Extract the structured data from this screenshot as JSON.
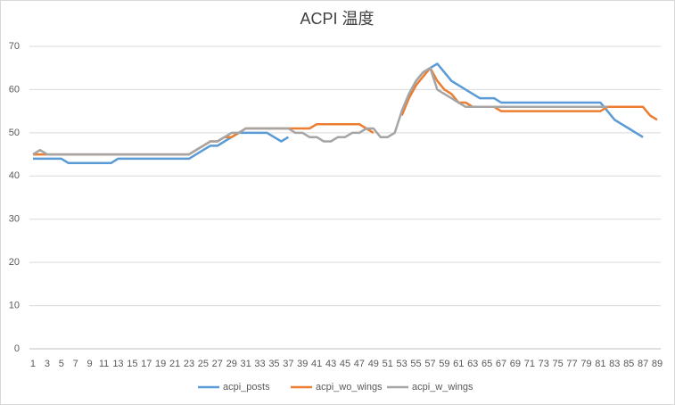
{
  "chart_data": {
    "type": "line",
    "title": "ACPI 温度",
    "x": [
      1,
      2,
      3,
      4,
      5,
      6,
      7,
      8,
      9,
      10,
      11,
      12,
      13,
      14,
      15,
      16,
      17,
      18,
      19,
      20,
      21,
      22,
      23,
      24,
      25,
      26,
      27,
      28,
      29,
      30,
      31,
      32,
      33,
      34,
      35,
      36,
      37,
      38,
      39,
      40,
      41,
      42,
      43,
      44,
      45,
      46,
      47,
      48,
      49,
      50,
      51,
      52,
      53,
      54,
      55,
      56,
      57,
      58,
      59,
      60,
      61,
      62,
      63,
      64,
      65,
      66,
      67,
      68,
      69,
      70,
      71,
      72,
      73,
      74,
      75,
      76,
      77,
      78,
      79,
      80,
      81,
      82,
      83,
      84,
      85,
      86,
      87,
      88,
      89
    ],
    "xlim": [
      0.5,
      89.5
    ],
    "xticks": [
      1,
      3,
      5,
      7,
      9,
      11,
      13,
      15,
      17,
      19,
      21,
      23,
      25,
      27,
      29,
      31,
      33,
      35,
      37,
      39,
      41,
      43,
      45,
      47,
      49,
      51,
      53,
      55,
      57,
      59,
      61,
      63,
      65,
      67,
      69,
      71,
      73,
      75,
      77,
      79,
      81,
      83,
      85,
      87,
      89
    ],
    "ylim": [
      0,
      70
    ],
    "yticks": [
      0,
      10,
      20,
      30,
      40,
      50,
      60,
      70
    ],
    "grid": true,
    "legend": "bottom",
    "series": [
      {
        "name": "acpi_posts",
        "color": "#5b9bd5",
        "values": [
          44,
          44,
          44,
          44,
          44,
          43,
          43,
          43,
          43,
          43,
          43,
          43,
          44,
          44,
          44,
          44,
          44,
          44,
          44,
          44,
          44,
          44,
          44,
          45,
          46,
          47,
          47,
          48,
          49,
          50,
          50,
          50,
          50,
          50,
          49,
          48,
          49,
          null,
          null,
          null,
          null,
          null,
          null,
          null,
          null,
          null,
          null,
          null,
          null,
          null,
          null,
          null,
          55,
          59,
          62,
          64,
          65,
          66,
          64,
          62,
          61,
          60,
          59,
          58,
          58,
          58,
          57,
          57,
          57,
          57,
          57,
          57,
          57,
          57,
          57,
          57,
          57,
          57,
          57,
          57,
          57,
          55,
          53,
          52,
          51,
          50,
          49,
          null,
          null
        ]
      },
      {
        "name": "acpi_wo_wings",
        "color": "#ed7d31",
        "values": [
          45,
          45,
          45,
          45,
          45,
          45,
          45,
          45,
          45,
          45,
          45,
          45,
          45,
          45,
          45,
          45,
          45,
          45,
          45,
          45,
          45,
          45,
          45,
          46,
          47,
          48,
          48,
          49,
          49,
          50,
          51,
          51,
          51,
          51,
          51,
          51,
          51,
          51,
          51,
          51,
          52,
          52,
          52,
          52,
          52,
          52,
          52,
          51,
          50,
          null,
          null,
          null,
          54,
          58,
          61,
          63,
          65,
          62,
          60,
          59,
          57,
          57,
          56,
          56,
          56,
          56,
          55,
          55,
          55,
          55,
          55,
          55,
          55,
          55,
          55,
          55,
          55,
          55,
          55,
          55,
          55,
          56,
          56,
          56,
          56,
          56,
          56,
          54,
          53
        ]
      },
      {
        "name": "acpi_w_wings",
        "color": "#a5a5a5",
        "values": [
          45,
          46,
          45,
          45,
          45,
          45,
          45,
          45,
          45,
          45,
          45,
          45,
          45,
          45,
          45,
          45,
          45,
          45,
          45,
          45,
          45,
          45,
          45,
          46,
          47,
          48,
          48,
          49,
          50,
          50,
          51,
          51,
          51,
          51,
          51,
          51,
          51,
          50,
          50,
          49,
          49,
          48,
          48,
          49,
          49,
          50,
          50,
          51,
          51,
          49,
          49,
          50,
          55,
          59,
          62,
          64,
          65,
          60,
          59,
          58,
          57,
          56,
          56,
          56,
          56,
          56,
          56,
          56,
          56,
          56,
          56,
          56,
          56,
          56,
          56,
          56,
          56,
          56,
          56,
          56,
          56,
          56,
          null,
          null,
          null,
          null,
          null,
          null,
          null
        ]
      }
    ]
  }
}
